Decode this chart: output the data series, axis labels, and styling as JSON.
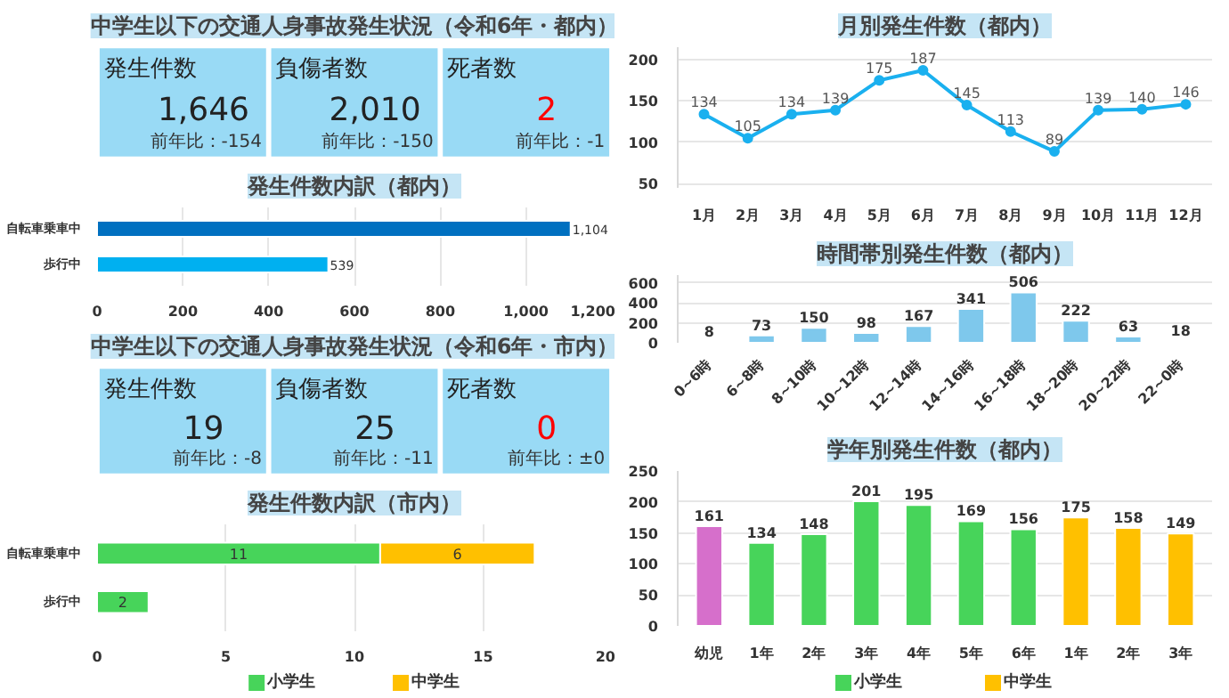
{
  "chart_data": [
    {
      "type": "other",
      "title": "中学生以下の交通人身事故発生状況（令和6年・都内）",
      "annotations": [
        "発生件数",
        "1,646",
        "前年比：-154",
        "負傷者数",
        "2,010",
        "前年比：-150",
        "死者数",
        "2",
        "前年比：-1"
      ]
    },
    {
      "type": "bar",
      "orientation": "horizontal",
      "title": "発生件数内訳（都内）",
      "categories": [
        "自転車乗車中",
        "歩行中"
      ],
      "values": [
        1104,
        539
      ],
      "colors": [
        "#0070c0",
        "#00b0f0"
      ],
      "value_labels": [
        "1,104",
        "539"
      ],
      "xlim": [
        0,
        1200
      ],
      "xticks": [
        0,
        200,
        400,
        600,
        800,
        {
          "value": 1000,
          "label": "1,000"
        },
        {
          "value": 1200,
          "label": "1,200"
        }
      ],
      "grid": "x"
    },
    {
      "type": "other",
      "title": "中学生以下の交通人身事故発生状況（令和6年・市内）",
      "annotations": [
        "発生件数",
        "19",
        "前年比：-8",
        "負傷者数",
        "25",
        "前年比：-11",
        "死者数",
        "0",
        "前年比：±0"
      ]
    },
    {
      "type": "bar",
      "orientation": "horizontal",
      "stacked": true,
      "title": "発生件数内訳（市内）",
      "categories": [
        "自転車乗車中",
        "歩行中"
      ],
      "series": [
        {
          "name": "小学生",
          "color": "#47d45a",
          "values": [
            11,
            2
          ]
        },
        {
          "name": "中学生",
          "color": "#ffc000",
          "values": [
            6,
            null
          ]
        }
      ],
      "data_labels": true,
      "xlim": [
        0,
        20
      ],
      "xticks": [
        0,
        5,
        10,
        15,
        20
      ],
      "grid": "x",
      "legend": "bottom"
    },
    {
      "type": "line",
      "title": "月別発生件数（都内）",
      "categories": [
        "1月",
        "2月",
        "3月",
        "4月",
        "5月",
        "6月",
        "7月",
        "8月",
        "9月",
        "10月",
        "11月",
        "12月"
      ],
      "values": [
        134,
        105,
        134,
        139,
        175,
        187,
        145,
        113,
        89,
        139,
        140,
        146
      ],
      "color": "#1ab0ef",
      "marker": "circle",
      "data_labels": true,
      "ylim": [
        45,
        215
      ],
      "yticks": [
        50,
        100,
        150,
        200
      ],
      "grid": "y"
    },
    {
      "type": "bar",
      "title": "時間帯別発生件数（都内）",
      "categories": [
        "0~6時",
        "6~8時",
        "8~10時",
        "10~12時",
        "12~14時",
        "14~16時",
        "16~18時",
        "18~20時",
        "20~22時",
        "22~0時"
      ],
      "values": [
        8,
        73,
        150,
        98,
        167,
        341,
        506,
        222,
        63,
        18
      ],
      "color": "#7ec8ec",
      "data_labels": true,
      "ylim": [
        0,
        680
      ],
      "yticks": [
        0,
        200,
        400,
        600
      ],
      "grid": "y"
    },
    {
      "type": "bar",
      "title": "学年別発生件数（都内）",
      "categories": [
        "幼児",
        "1年",
        "2年",
        "3年",
        "4年",
        "5年",
        "6年",
        "1年",
        "2年",
        "3年"
      ],
      "series": [
        {
          "color": "#d66fcb",
          "values": [
            161,
            null,
            null,
            null,
            null,
            null,
            null,
            null,
            null,
            null
          ]
        },
        {
          "name": "小学生",
          "color": "#47d45a",
          "values": [
            null,
            134,
            148,
            201,
            195,
            169,
            156,
            null,
            null,
            null
          ]
        },
        {
          "name": "中学生",
          "color": "#ffc000",
          "values": [
            null,
            null,
            null,
            null,
            null,
            null,
            null,
            175,
            158,
            149
          ]
        }
      ],
      "data_labels": true,
      "ylim": [
        0,
        250
      ],
      "yticks": [
        0,
        50,
        100,
        150,
        200,
        250
      ],
      "grid": "y",
      "legend": "bottom"
    }
  ]
}
